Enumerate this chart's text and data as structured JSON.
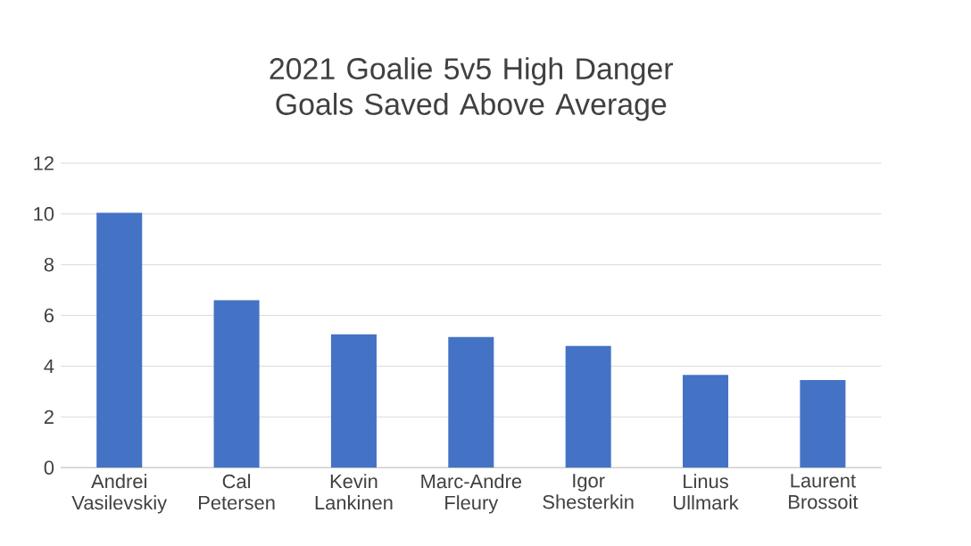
{
  "chart_data": {
    "type": "bar",
    "title": "2021 Goalie 5v5 High Danger Goals Saved Above Average",
    "categories": [
      "Andrei Vasilevskiy",
      "Cal Petersen",
      "Kevin Lankinen",
      "Marc-Andre Fleury",
      "Igor Shesterkin",
      "Linus Ullmark",
      "Laurent Brossoit"
    ],
    "values": [
      10.05,
      6.6,
      5.25,
      5.15,
      4.8,
      3.65,
      3.45
    ],
    "color": "#4472c4",
    "ylim": [
      0,
      12
    ],
    "yticks": [
      0,
      2,
      4,
      6,
      8,
      10,
      12
    ],
    "grid": "y"
  }
}
